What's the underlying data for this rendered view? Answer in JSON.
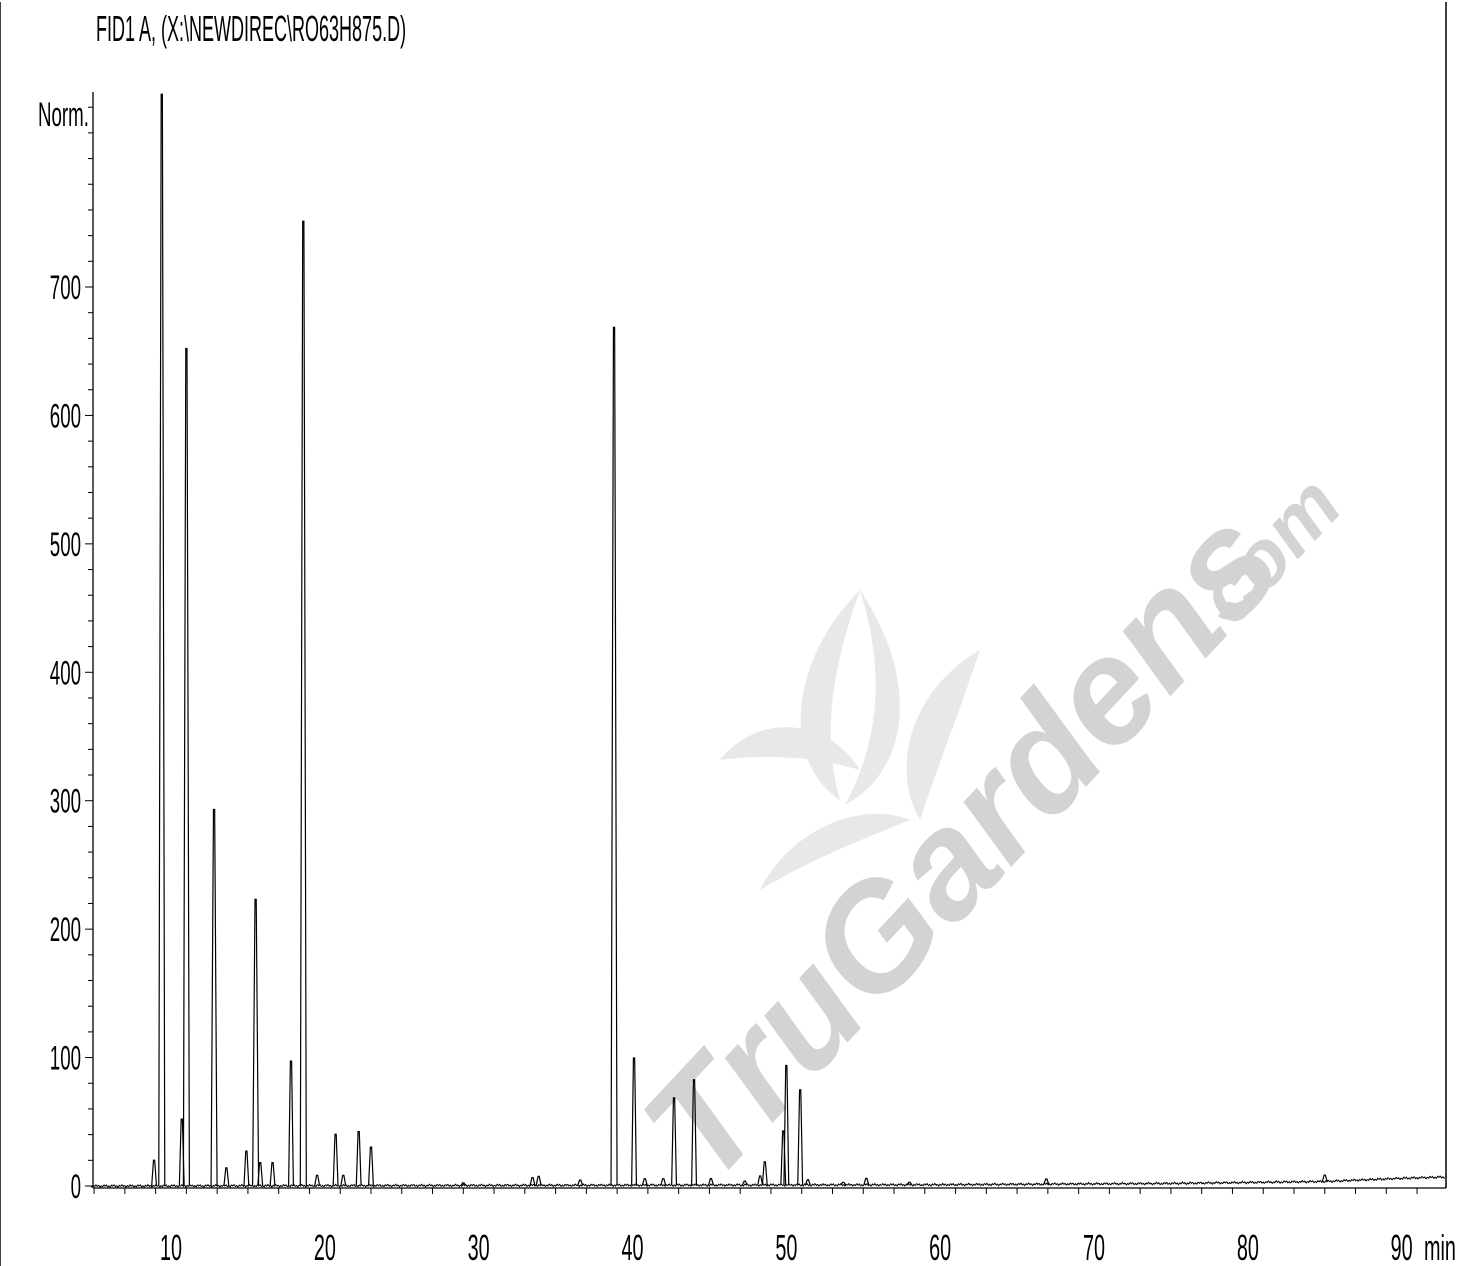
{
  "chart_data": {
    "type": "line",
    "title": "FID1 A,  (X:\\NEWDIREC\\RO63H875.D)",
    "ylabel": "Norm.",
    "xlabel": "min",
    "xlim": [
      4.8,
      92.8
    ],
    "ylim": [
      -15,
      850
    ],
    "x_ticks": [
      10,
      20,
      30,
      40,
      50,
      60,
      70,
      80,
      90
    ],
    "y_ticks": [
      0,
      100,
      200,
      300,
      400,
      500,
      600,
      700
    ],
    "grid": false,
    "peaks": [
      {
        "rt": 8.9,
        "height": 20
      },
      {
        "rt": 9.4,
        "height": 850
      },
      {
        "rt": 10.7,
        "height": 52
      },
      {
        "rt": 11.0,
        "height": 652
      },
      {
        "rt": 12.8,
        "height": 293
      },
      {
        "rt": 13.6,
        "height": 14
      },
      {
        "rt": 14.9,
        "height": 27
      },
      {
        "rt": 15.5,
        "height": 223
      },
      {
        "rt": 15.8,
        "height": 18
      },
      {
        "rt": 16.6,
        "height": 18
      },
      {
        "rt": 17.8,
        "height": 97
      },
      {
        "rt": 18.6,
        "height": 751
      },
      {
        "rt": 19.5,
        "height": 8
      },
      {
        "rt": 20.7,
        "height": 40
      },
      {
        "rt": 21.2,
        "height": 8
      },
      {
        "rt": 22.2,
        "height": 42
      },
      {
        "rt": 23.0,
        "height": 30
      },
      {
        "rt": 29.0,
        "height": 2
      },
      {
        "rt": 33.5,
        "height": 6
      },
      {
        "rt": 33.9,
        "height": 7
      },
      {
        "rt": 36.6,
        "height": 4
      },
      {
        "rt": 38.8,
        "height": 668
      },
      {
        "rt": 40.1,
        "height": 99
      },
      {
        "rt": 40.8,
        "height": 5
      },
      {
        "rt": 42.0,
        "height": 5
      },
      {
        "rt": 42.7,
        "height": 68
      },
      {
        "rt": 44.0,
        "height": 82
      },
      {
        "rt": 45.1,
        "height": 5
      },
      {
        "rt": 47.3,
        "height": 3
      },
      {
        "rt": 48.3,
        "height": 7
      },
      {
        "rt": 48.6,
        "height": 18
      },
      {
        "rt": 49.8,
        "height": 42
      },
      {
        "rt": 50.0,
        "height": 93
      },
      {
        "rt": 50.9,
        "height": 74
      },
      {
        "rt": 51.4,
        "height": 4
      },
      {
        "rt": 53.7,
        "height": 2
      },
      {
        "rt": 55.2,
        "height": 5
      },
      {
        "rt": 58.0,
        "height": 2
      },
      {
        "rt": 66.9,
        "height": 4
      },
      {
        "rt": 85.0,
        "height": 5
      }
    ],
    "baseline_drift": [
      {
        "x": 4.8,
        "y": 0
      },
      {
        "x": 60,
        "y": 1
      },
      {
        "x": 75,
        "y": 2
      },
      {
        "x": 85,
        "y": 3.5
      },
      {
        "x": 90,
        "y": 6
      },
      {
        "x": 92.8,
        "y": 7
      }
    ]
  },
  "watermark": {
    "text": "TruGardens.com"
  }
}
